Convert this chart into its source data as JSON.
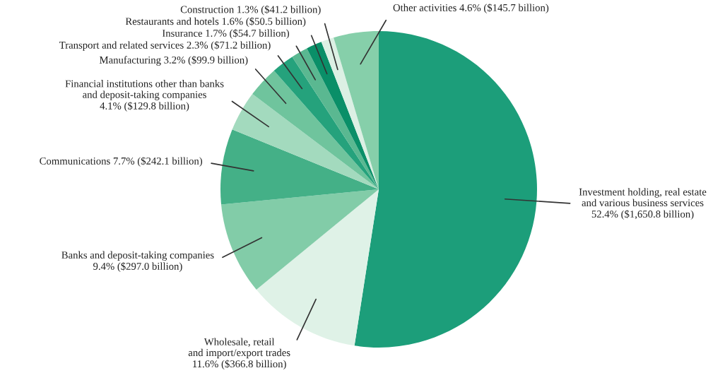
{
  "chart_data": {
    "type": "pie",
    "categories": [
      "Investment holding, real estate\nand various business services",
      "Wholesale, retail\nand import/export trades",
      "Banks and deposit-taking companies",
      "Communications",
      "Financial institutions other than banks\nand deposit-taking companies",
      "Manufacturing",
      "Transport and related services",
      "Insurance",
      "Restaurants and hotels",
      "Construction",
      "Other activities"
    ],
    "values": [
      52.4,
      11.6,
      9.4,
      7.7,
      4.1,
      3.2,
      2.3,
      1.7,
      1.6,
      1.3,
      4.6
    ],
    "value_labels": [
      "52.4% ($1,650.8 billion)",
      "11.6% ($366.8 billion)",
      "9.4% ($297.0 billion)",
      "7.7% ($242.1 billion)",
      "4.1% ($129.8 billion)",
      "3.2% ($99.9 billion)",
      "2.3% ($71.2 billion)",
      "1.7% ($54.7 billion)",
      "1.6% ($50.5 billion)",
      "1.3% ($41.2 billion)",
      "4.6% ($145.7 billion)"
    ],
    "colors": [
      "#1c9e7a",
      "#dff2e7",
      "#82cca8",
      "#44b087",
      "#a3dabe",
      "#6fc49d",
      "#25a27c",
      "#5ab891",
      "#0a8f68",
      "#dcf0e4",
      "#86cfaa"
    ]
  }
}
